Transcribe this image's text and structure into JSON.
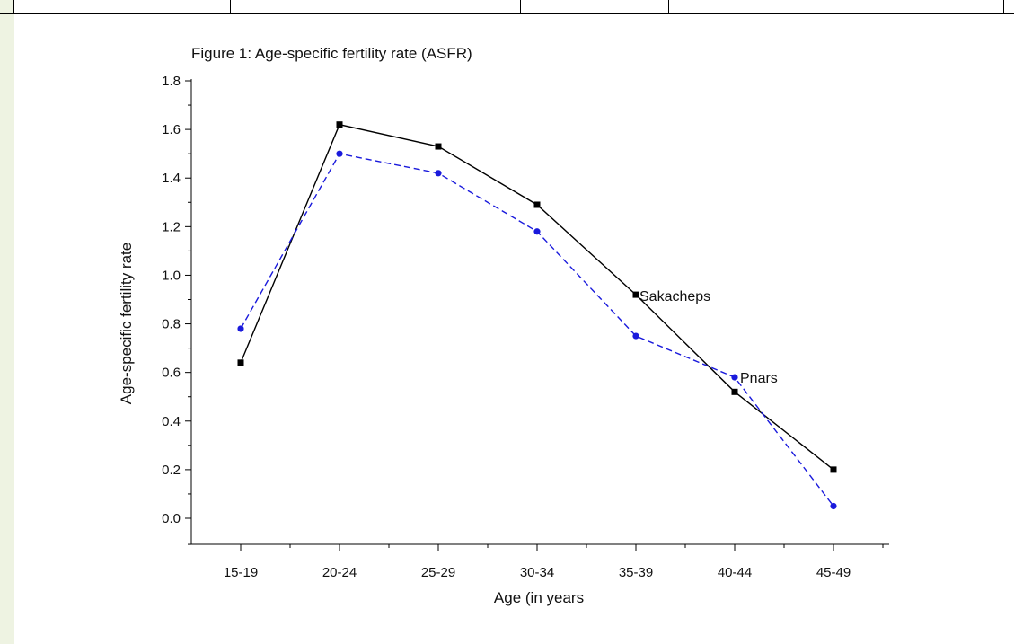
{
  "chart_data": {
    "type": "line",
    "title": "Figure 1: Age-specific fertility rate (ASFR)",
    "xlabel": "Age (in years",
    "ylabel": "Age-specific fertility rate",
    "categories": [
      "15-19",
      "20-24",
      "25-29",
      "30-34",
      "35-39",
      "40-44",
      "45-49"
    ],
    "ylim": [
      -0.1,
      1.8
    ],
    "y_ticks": [
      "0.0",
      "0.2",
      "0.4",
      "0.6",
      "0.8",
      "1.0",
      "1.2",
      "1.4",
      "1.6",
      "1.8"
    ],
    "grid": false,
    "series": [
      {
        "name": "Sakacheps",
        "values": [
          0.64,
          1.62,
          1.53,
          1.29,
          0.92,
          0.52,
          0.2
        ],
        "color": "#000000",
        "marker": "square",
        "line_style": "solid"
      },
      {
        "name": "Pnars",
        "values": [
          0.78,
          1.5,
          1.42,
          1.18,
          0.75,
          0.58,
          0.05
        ],
        "color": "#1a1adc",
        "marker": "circle",
        "line_style": "dashed"
      }
    ]
  }
}
